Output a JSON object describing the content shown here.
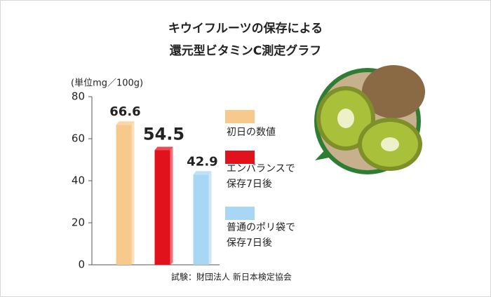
{
  "chart_data": {
    "type": "bar",
    "title": "キウイフルーツの保存による\n還元型ビタミンC測定グラフ",
    "y_label": "(単位mg／100g)",
    "note": "試験：財団法人 新日本検定協会",
    "categories": [
      "初日の数値",
      "エンバランスで\n保存7日後",
      "普通のポリ袋で\n保存7日後"
    ],
    "values": [
      66.6,
      54.5,
      42.9
    ],
    "colors": [
      "#f8c98c",
      "#e2121c",
      "#a8d7f4"
    ],
    "label_colors": [
      "#222222",
      "#e2121c",
      "#222222"
    ],
    "ylim": [
      0,
      80
    ],
    "yticks": [
      0,
      20,
      40,
      60,
      80
    ]
  }
}
